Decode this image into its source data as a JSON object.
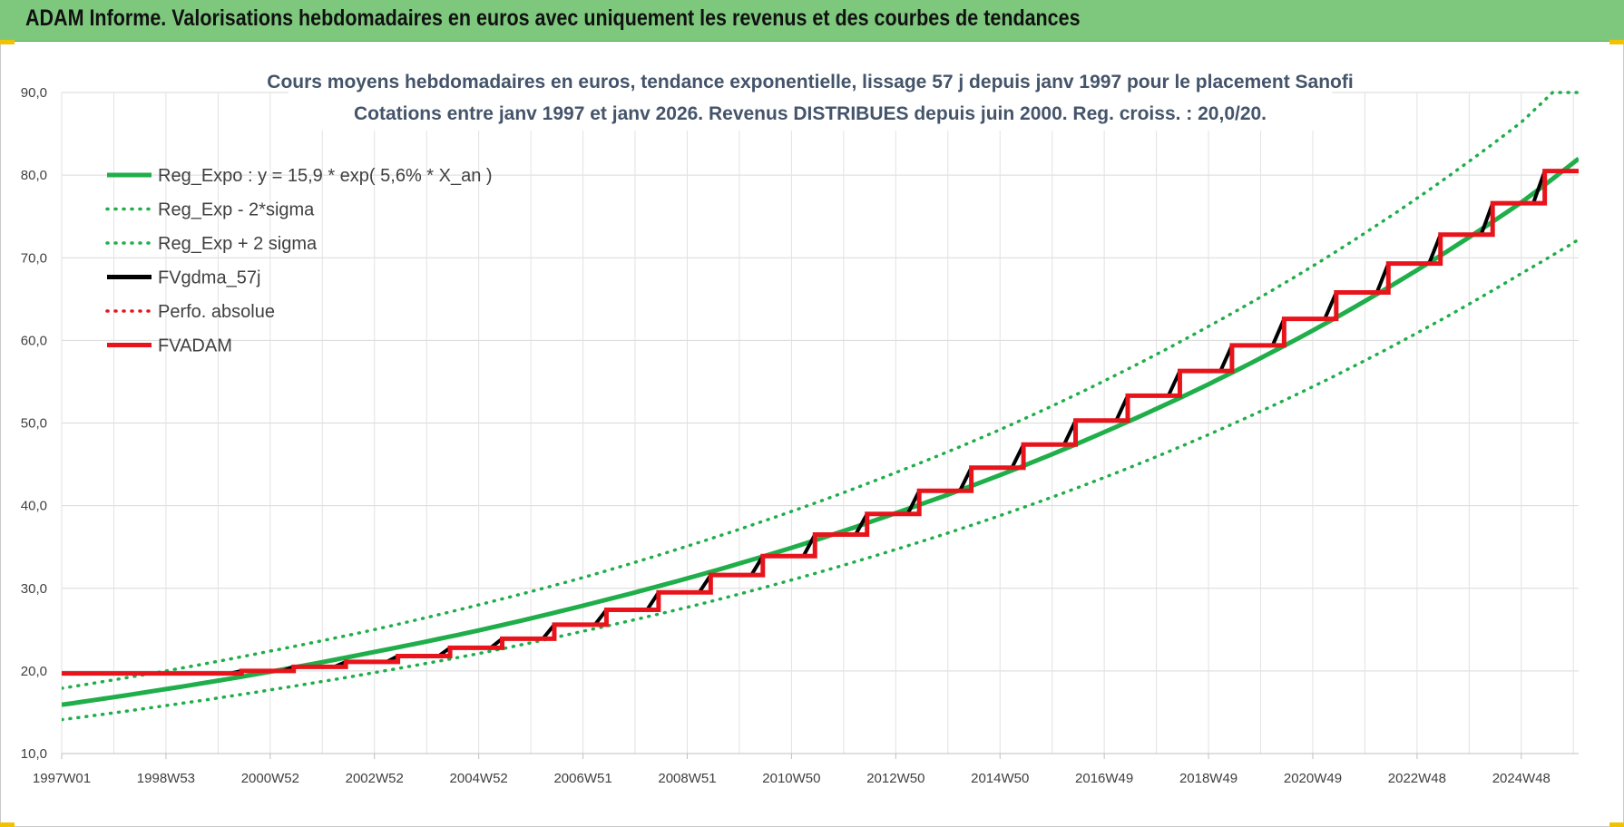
{
  "header": {
    "title": "ADAM Informe. Valorisations hebdomadaires en euros avec uniquement les revenus et des courbes de tendances"
  },
  "chart_data": {
    "type": "line",
    "title_lines": [
      "Cours moyens hebdomadaires en euros, tendance exponentielle, lissage 57 j depuis janv 1997 pour le placement Sanofi",
      "Cotations entre janv 1997 et janv 2026. Revenus DISTRIBUES depuis juin 2000. Reg. croiss. : 20,0/20."
    ],
    "xlabel": "",
    "ylabel": "",
    "x_range": [
      1997.0,
      2026.1
    ],
    "ylim": [
      10,
      90
    ],
    "y_ticks": [
      "10,0",
      "20,0",
      "30,0",
      "40,0",
      "50,0",
      "60,0",
      "70,0",
      "80,0",
      "90,0"
    ],
    "x_ticks": [
      {
        "label": "1997W01",
        "x": 1997.0
      },
      {
        "label": "1998W53",
        "x": 1999.0
      },
      {
        "label": "2000W52",
        "x": 2001.0
      },
      {
        "label": "2002W52",
        "x": 2003.0
      },
      {
        "label": "2004W52",
        "x": 2005.0
      },
      {
        "label": "2006W51",
        "x": 2007.0
      },
      {
        "label": "2008W51",
        "x": 2009.0
      },
      {
        "label": "2010W50",
        "x": 2011.0
      },
      {
        "label": "2012W50",
        "x": 2013.0
      },
      {
        "label": "2014W50",
        "x": 2015.0
      },
      {
        "label": "2016W49",
        "x": 2017.0
      },
      {
        "label": "2018W49",
        "x": 2019.0
      },
      {
        "label": "2020W49",
        "x": 2021.0
      },
      {
        "label": "2022W48",
        "x": 2023.0
      },
      {
        "label": "2024W48",
        "x": 2025.0
      }
    ],
    "grid": true,
    "legend_position": "top-left",
    "series": [
      {
        "name": "Reg_Expo : y = 15,9 * exp( 5,6% *  X_an )",
        "color": "#1fae4a",
        "style": "solid",
        "width": 5,
        "x": [
          1997.0,
          1999.0,
          2001.0,
          2003.0,
          2005.0,
          2007.0,
          2009.0,
          2011.0,
          2013.0,
          2015.0,
          2017.0,
          2019.0,
          2021.0,
          2023.0,
          2025.0,
          2026.1
        ],
        "values": [
          15.9,
          17.8,
          19.9,
          22.3,
          24.9,
          27.9,
          31.2,
          34.9,
          39.1,
          43.7,
          48.9,
          54.7,
          61.2,
          68.5,
          76.7,
          82.0
        ]
      },
      {
        "name": "Reg_Exp - 2*sigma",
        "color": "#1fae4a",
        "style": "dotted",
        "width": 3.5,
        "x": [
          1997.0,
          1999.0,
          2001.0,
          2003.0,
          2005.0,
          2007.0,
          2009.0,
          2011.0,
          2013.0,
          2015.0,
          2017.0,
          2019.0,
          2021.0,
          2023.0,
          2025.0,
          2026.1
        ],
        "values": [
          14.1,
          15.8,
          17.7,
          19.8,
          22.1,
          24.8,
          27.7,
          31.0,
          34.7,
          38.8,
          43.4,
          48.6,
          54.4,
          60.9,
          68.1,
          72.2
        ]
      },
      {
        "name": "Reg_Exp + 2 sigma",
        "color": "#1fae4a",
        "style": "dotted",
        "width": 3.5,
        "x": [
          1997.0,
          1999.0,
          2001.0,
          2003.0,
          2005.0,
          2007.0,
          2009.0,
          2011.0,
          2013.0,
          2015.0,
          2017.0,
          2019.0,
          2021.0,
          2023.0,
          2025.0,
          2025.6,
          2026.1
        ],
        "values": [
          17.9,
          20.0,
          22.4,
          25.0,
          28.0,
          31.3,
          35.1,
          39.3,
          44.0,
          49.2,
          55.1,
          61.7,
          69.0,
          77.2,
          86.4,
          90.0,
          90.0
        ]
      },
      {
        "name": "FVgdma_57j",
        "color": "#000000",
        "style": "smooth-steps",
        "width": 4,
        "x": [
          1997.0,
          2000.45,
          2001.45,
          2002.45,
          2003.45,
          2004.45,
          2005.45,
          2006.45,
          2007.45,
          2008.45,
          2009.45,
          2010.45,
          2011.45,
          2012.45,
          2013.45,
          2014.45,
          2015.45,
          2016.45,
          2017.45,
          2018.45,
          2019.45,
          2020.45,
          2021.45,
          2022.45,
          2023.45,
          2024.45,
          2025.45,
          2026.1
        ],
        "values": [
          19.7,
          20.0,
          20.5,
          21.1,
          21.8,
          22.8,
          23.9,
          25.6,
          27.4,
          29.5,
          31.6,
          33.9,
          36.5,
          39.0,
          41.8,
          44.6,
          47.4,
          50.3,
          53.3,
          56.3,
          59.4,
          62.6,
          65.8,
          69.3,
          72.8,
          76.6,
          80.5,
          80.5
        ]
      },
      {
        "name": "Perfo. absolue",
        "color": "#e8141b",
        "style": "dotted",
        "width": 3,
        "x": [],
        "values": []
      },
      {
        "name": "FVADAM",
        "color": "#e8141b",
        "style": "steps",
        "width": 5,
        "x": [
          1997.0,
          2000.45,
          2001.45,
          2002.45,
          2003.45,
          2004.45,
          2005.45,
          2006.45,
          2007.45,
          2008.45,
          2009.45,
          2010.45,
          2011.45,
          2012.45,
          2013.45,
          2014.45,
          2015.45,
          2016.45,
          2017.45,
          2018.45,
          2019.45,
          2020.45,
          2021.45,
          2022.45,
          2023.45,
          2024.45,
          2025.45,
          2026.1
        ],
        "values": [
          19.7,
          20.0,
          20.5,
          21.1,
          21.8,
          22.8,
          23.9,
          25.6,
          27.4,
          29.5,
          31.6,
          33.9,
          36.5,
          39.0,
          41.8,
          44.6,
          47.4,
          50.3,
          53.3,
          56.3,
          59.4,
          62.6,
          65.8,
          69.3,
          72.8,
          76.6,
          80.5,
          80.5
        ]
      }
    ]
  }
}
